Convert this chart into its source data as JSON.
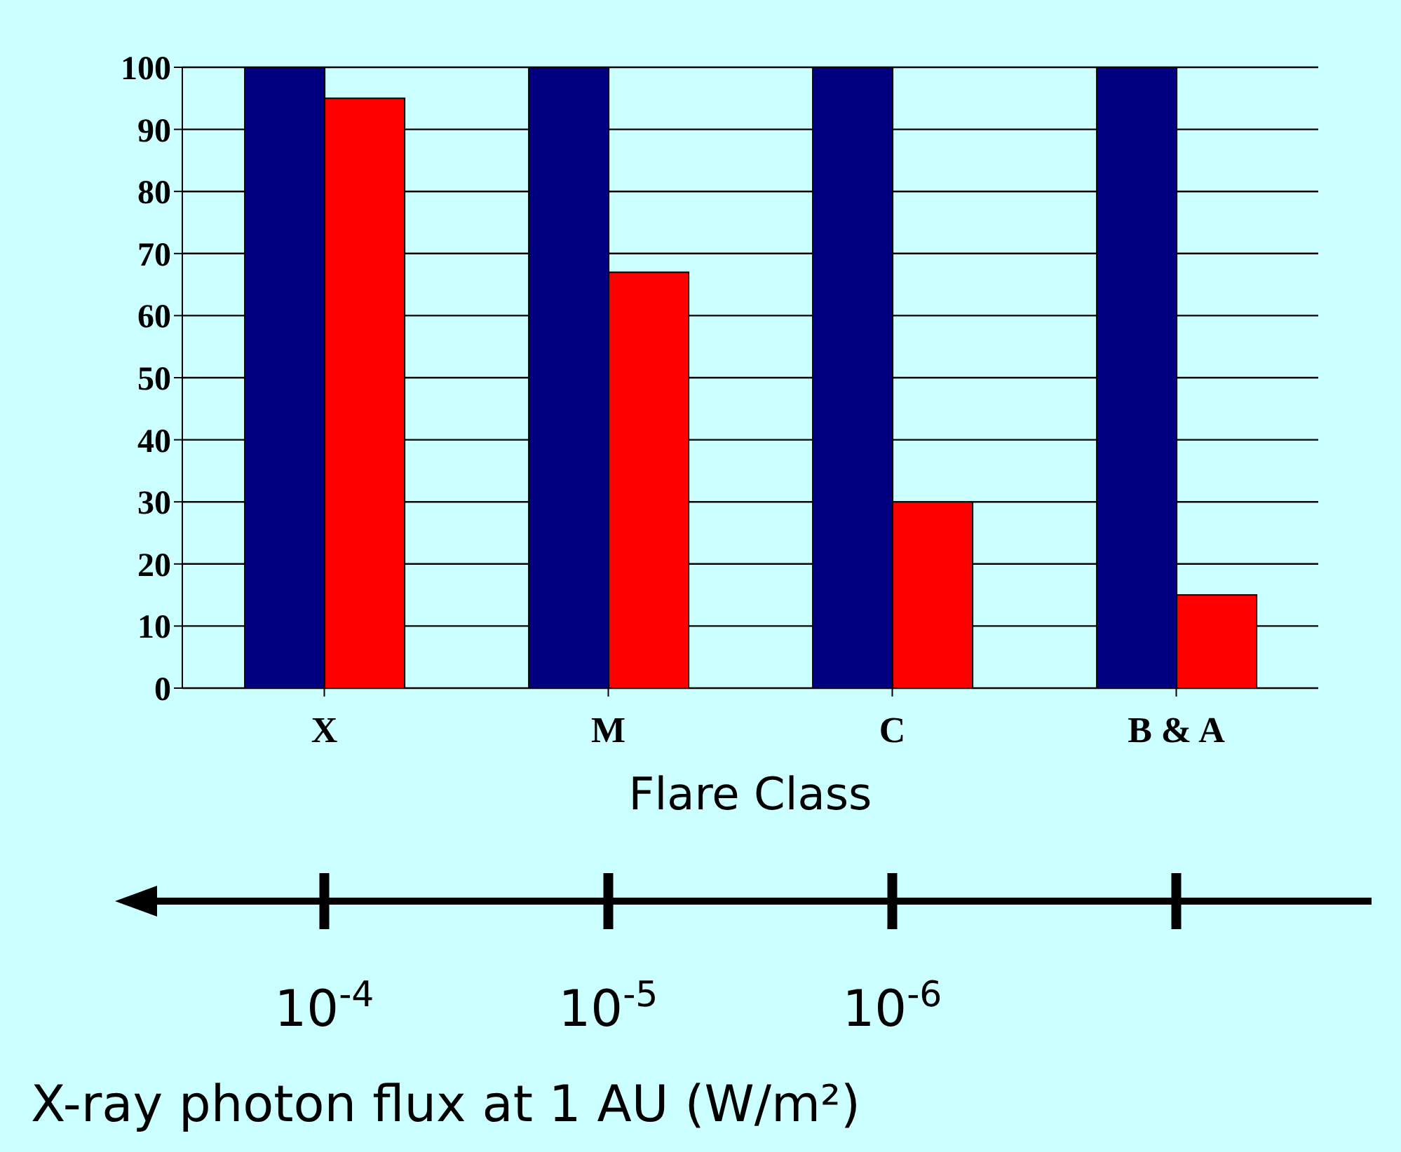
{
  "chart_data": {
    "type": "bar",
    "xlabel": "Flare Class",
    "categories": [
      "X",
      "M",
      "C",
      "B & A"
    ],
    "series": [
      {
        "color": "#000080",
        "values": [
          100,
          100,
          100,
          100
        ]
      },
      {
        "color": "#ff0000",
        "values": [
          95,
          67,
          30,
          15
        ]
      }
    ],
    "ylim": [
      0,
      100
    ],
    "yticks": [
      0,
      10,
      20,
      30,
      40,
      50,
      60,
      70,
      80,
      90,
      100
    ],
    "grid": "y",
    "annotations": [
      "10$^{-4}$",
      "10$^{-5}$",
      "10$^{-6}$",
      "X-ray photon flux at 1 AU (W/m²)"
    ]
  }
}
